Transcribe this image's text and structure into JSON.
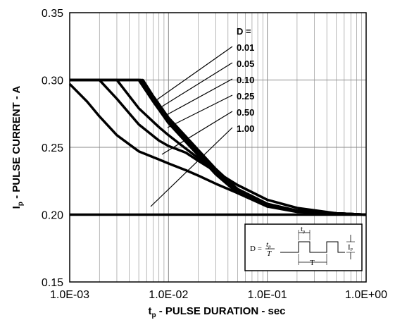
{
  "chart_data": {
    "type": "line",
    "x_scale": "log",
    "xlim": [
      0.001,
      1.0
    ],
    "ylim": [
      0.15,
      0.35
    ],
    "grid": true,
    "x_ticks": [
      "1.0E-03",
      "1.0E-02",
      "1.0E-01",
      "1.0E+00"
    ],
    "y_ticks": [
      "0.15",
      "0.20",
      "0.25",
      "0.30",
      "0.35"
    ],
    "ylabel": {
      "main": "I",
      "sub": "p",
      "rest": " - PULSE CURRENT - A"
    },
    "xlabel": {
      "main": "t",
      "sub": "p",
      "rest": " - PULSE DURATION - sec"
    },
    "legend_title": "D =",
    "series": [
      {
        "name": "0.01",
        "x": [
          0.001,
          0.0055,
          0.007,
          0.01,
          0.015,
          0.02,
          0.03,
          0.05,
          0.1,
          0.2,
          0.5,
          1.0
        ],
        "y": [
          0.3,
          0.3,
          0.288,
          0.272,
          0.258,
          0.248,
          0.234,
          0.219,
          0.208,
          0.203,
          0.201,
          0.2
        ]
      },
      {
        "name": "0.05",
        "x": [
          0.001,
          0.0052,
          0.007,
          0.01,
          0.015,
          0.02,
          0.03,
          0.05,
          0.1,
          0.2,
          0.5,
          1.0
        ],
        "y": [
          0.3,
          0.3,
          0.286,
          0.27,
          0.256,
          0.246,
          0.232,
          0.218,
          0.207,
          0.203,
          0.201,
          0.2
        ]
      },
      {
        "name": "0.10",
        "x": [
          0.001,
          0.005,
          0.007,
          0.01,
          0.015,
          0.02,
          0.03,
          0.05,
          0.1,
          0.2,
          0.5,
          1.0
        ],
        "y": [
          0.3,
          0.3,
          0.284,
          0.268,
          0.254,
          0.244,
          0.23,
          0.216,
          0.206,
          0.202,
          0.2005,
          0.2
        ]
      },
      {
        "name": "0.25",
        "x": [
          0.001,
          0.003,
          0.005,
          0.008,
          0.01,
          0.015,
          0.02,
          0.03,
          0.05,
          0.1,
          0.2,
          0.5,
          1.0
        ],
        "y": [
          0.3,
          0.3,
          0.279,
          0.265,
          0.259,
          0.249,
          0.242,
          0.231,
          0.219,
          0.208,
          0.203,
          0.201,
          0.2
        ]
      },
      {
        "name": "0.50",
        "x": [
          0.001,
          0.002,
          0.003,
          0.005,
          0.008,
          0.01,
          0.015,
          0.02,
          0.03,
          0.05,
          0.1,
          0.2,
          0.5,
          1.0
        ],
        "y": [
          0.3,
          0.3,
          0.286,
          0.267,
          0.255,
          0.251,
          0.246,
          0.24,
          0.232,
          0.222,
          0.211,
          0.205,
          0.201,
          0.2
        ]
      },
      {
        "name": "1.00",
        "x": [
          0.001,
          0.0015,
          0.002,
          0.003,
          0.005,
          0.008,
          0.01,
          0.015,
          0.02,
          0.03,
          0.05,
          0.1,
          0.2,
          0.5,
          1.0
        ],
        "y": [
          0.297,
          0.284,
          0.273,
          0.259,
          0.247,
          0.241,
          0.238,
          0.233,
          0.229,
          0.223,
          0.216,
          0.207,
          0.203,
          0.201,
          0.2
        ]
      },
      {
        "name": "",
        "x": [
          0.001,
          1.0
        ],
        "y": [
          0.2,
          0.2
        ]
      }
    ],
    "legend_entries": [
      "0.01",
      "0.05",
      "0.10",
      "0.25",
      "0.50",
      "1.00"
    ],
    "inset": {
      "formula_lhs": "D =",
      "formula_num": "t",
      "formula_num_sub": "p",
      "formula_den": "T",
      "label_tp": "t",
      "label_tp_sub": "p",
      "label_T": "T",
      "label_IP": "I",
      "label_IP_sub": "P"
    }
  }
}
